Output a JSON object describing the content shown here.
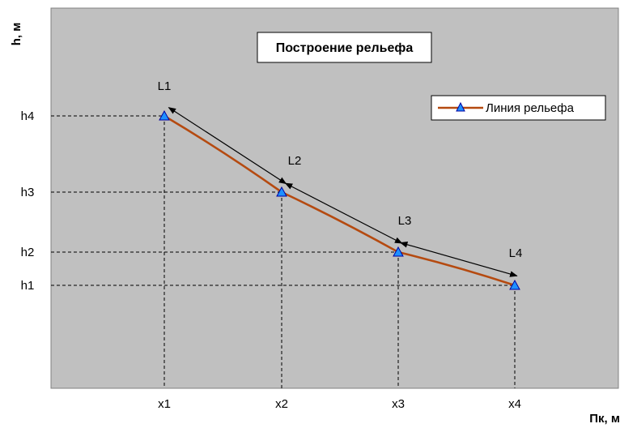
{
  "chart_data": {
    "type": "line",
    "title": "Построение рельефа",
    "xlabel": "Пк, м",
    "ylabel": "h, м",
    "categories": [
      "x1",
      "x2",
      "x3",
      "x4"
    ],
    "y_ticks": [
      "h1",
      "h2",
      "h3",
      "h4"
    ],
    "series": [
      {
        "name": "Линия рельефа",
        "values": [
          4,
          3,
          2,
          1
        ],
        "color": "#b54a10",
        "marker": "triangle",
        "marker_color": "#1e90ff"
      }
    ],
    "annotations": [
      "L1",
      "L2",
      "L3",
      "L4"
    ],
    "legend_position": "top-right",
    "plot_background": "#c0c0c0",
    "guide_lines": "dashed"
  }
}
